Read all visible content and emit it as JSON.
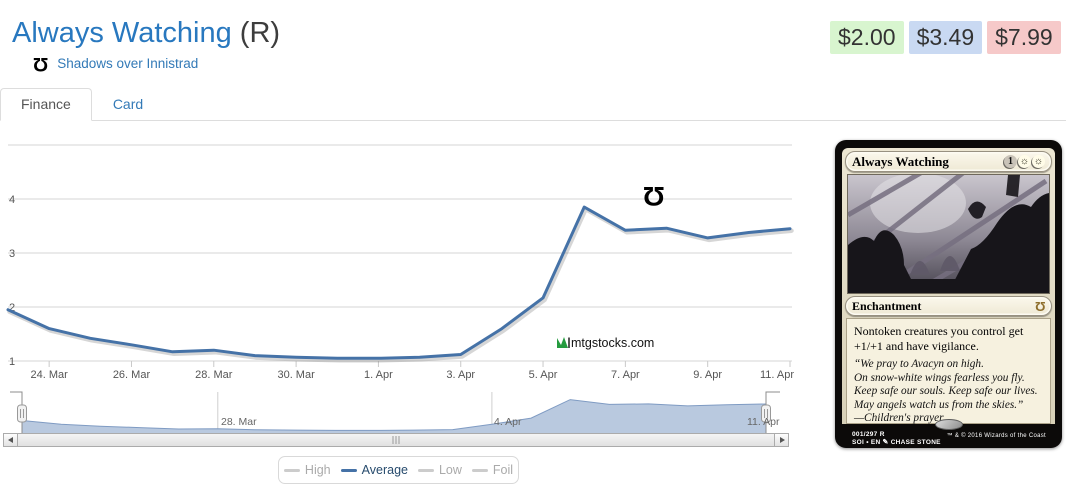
{
  "icons": {
    "set_symbol_glyph": "Ω",
    "white_mana_glyph": "☼"
  },
  "header": {
    "title": "Always Watching",
    "rarity": "(R)",
    "set_name": "Shadows over Innistrad"
  },
  "prices": [
    {
      "label": "$2.00",
      "kind": "low",
      "bg": "#d8f5cf"
    },
    {
      "label": "$3.49",
      "kind": "average",
      "bg": "#c9d9f2"
    },
    {
      "label": "$7.99",
      "kind": "high",
      "bg": "#f6c9c9"
    }
  ],
  "tabs": [
    {
      "label": "Finance",
      "active": true
    },
    {
      "label": "Card",
      "active": false
    }
  ],
  "chart_data": {
    "type": "line",
    "title": "",
    "x": [
      "23 Mar",
      "24 Mar",
      "25 Mar",
      "26 Mar",
      "27 Mar",
      "28 Mar",
      "29 Mar",
      "30 Mar",
      "31 Mar",
      "1 Apr",
      "2 Apr",
      "3 Apr",
      "4 Apr",
      "5 Apr",
      "6 Apr",
      "7 Apr",
      "8 Apr",
      "9 Apr",
      "10 Apr",
      "11 Apr"
    ],
    "series": [
      {
        "name": "Average",
        "color": "#4572a7",
        "values": [
          1.95,
          1.6,
          1.42,
          1.3,
          1.17,
          1.2,
          1.1,
          1.07,
          1.05,
          1.05,
          1.07,
          1.12,
          1.6,
          2.17,
          3.85,
          3.42,
          3.46,
          3.28,
          3.38,
          3.45
        ]
      }
    ],
    "x_tick_labels": [
      "24. Mar",
      "26. Mar",
      "28. Mar",
      "30. Mar",
      "1. Apr",
      "3. Apr",
      "5. Apr",
      "7. Apr",
      "9. Apr",
      "11. Apr"
    ],
    "yticks": [
      1,
      2,
      3,
      4
    ],
    "ylim": [
      1,
      5
    ],
    "grid": true,
    "legend_position": "bottom",
    "legend": [
      {
        "label": "High",
        "active": false,
        "dash_color": "#cccccc",
        "text_color": "#aaaaaa"
      },
      {
        "label": "Average",
        "active": true,
        "dash_color": "#4572a7",
        "text_color": "#274b6d"
      },
      {
        "label": "Low",
        "active": false,
        "dash_color": "#cccccc",
        "text_color": "#aaaaaa"
      },
      {
        "label": "Foil",
        "active": false,
        "dash_color": "#cccccc",
        "text_color": "#aaaaaa"
      }
    ],
    "navigator_labels": [
      "28. Mar",
      "4. Apr",
      "11. Apr"
    ],
    "watermark_text": "mtgstocks.com"
  },
  "card": {
    "title": "Always Watching",
    "mana_cost": [
      "1",
      "W",
      "W"
    ],
    "type_line": "Enchantment",
    "rules_text": "Nontoken creatures you control get +1/+1 and have vigilance.",
    "flavor_lines": [
      "“We pray to Avacyn on high.",
      "On snow-white wings fearless you fly.",
      "Keep safe our souls. Keep safe our lives.",
      "May angels watch us from the skies.”",
      "—Children's prayer"
    ],
    "collector_number": "001/297 R",
    "set_code": "SOI • EN",
    "artist": "Chase Stone",
    "copyright": "™ & © 2016 Wizards of the Coast"
  }
}
